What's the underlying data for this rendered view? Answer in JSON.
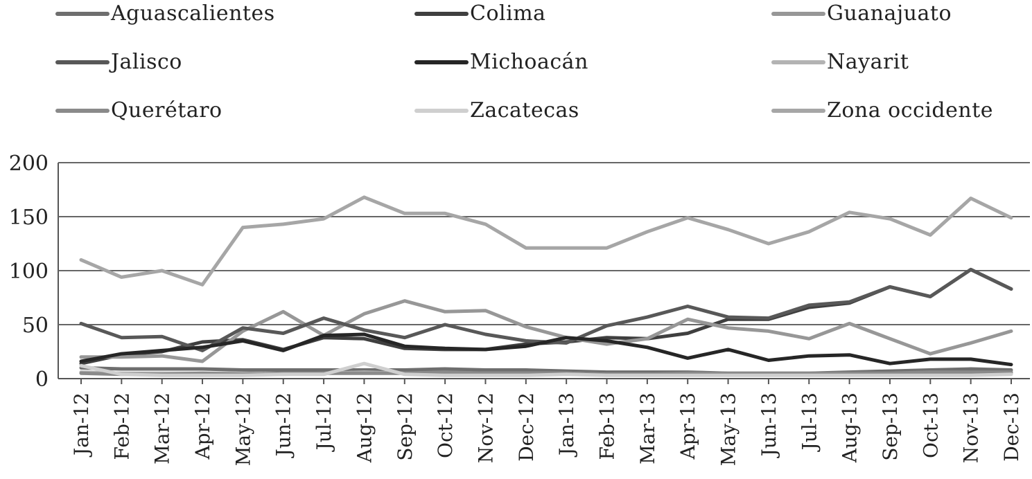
{
  "chart_data": {
    "type": "line",
    "title": "",
    "xlabel": "",
    "ylabel": "",
    "ylim": [
      0,
      200
    ],
    "yticks": [
      "0",
      "50",
      "100",
      "150",
      "200"
    ],
    "grid": "horizontal",
    "legend_position": "top",
    "categories": [
      "Jan-12",
      "Feb-12",
      "Mar-12",
      "Apr-12",
      "May-12",
      "Jun-12",
      "Jul-12",
      "Aug-12",
      "Sep-12",
      "Oct-12",
      "Nov-12",
      "Dec-12",
      "Jan-13",
      "Feb-13",
      "Mar-13",
      "Apr-13",
      "May-13",
      "Jun-13",
      "Jul-13",
      "Aug-13",
      "Sep-13",
      "Oct-13",
      "Nov-13",
      "Dec-13"
    ],
    "series": [
      {
        "name": "Aguascalientes",
        "color": "#6e6e6e",
        "values": [
          10,
          9,
          9,
          9,
          8,
          8,
          8,
          8,
          8,
          9,
          8,
          8,
          7,
          6,
          6,
          6,
          5,
          5,
          5,
          6,
          7,
          8,
          9,
          8
        ]
      },
      {
        "name": "Colima",
        "color": "#3f3f3f",
        "values": [
          14,
          22,
          25,
          34,
          36,
          27,
          38,
          37,
          28,
          27,
          27,
          32,
          34,
          38,
          37,
          42,
          55,
          55,
          66,
          70,
          85,
          76,
          101,
          83
        ]
      },
      {
        "name": "Guanajuato",
        "color": "#979797",
        "values": [
          20,
          20,
          21,
          16,
          44,
          62,
          40,
          60,
          72,
          62,
          63,
          48,
          38,
          32,
          37,
          55,
          47,
          44,
          37,
          51,
          37,
          23,
          33,
          44
        ]
      },
      {
        "name": "Jalisco",
        "color": "#585858",
        "values": [
          51,
          38,
          39,
          26,
          47,
          42,
          56,
          45,
          38,
          50,
          41,
          35,
          33,
          49,
          57,
          67,
          57,
          56,
          68,
          71,
          85,
          76,
          101,
          83
        ]
      },
      {
        "name": "Michoacán",
        "color": "#262626",
        "values": [
          16,
          23,
          26,
          29,
          35,
          26,
          40,
          41,
          30,
          28,
          27,
          30,
          38,
          35,
          29,
          19,
          27,
          17,
          21,
          22,
          14,
          18,
          18,
          13
        ]
      },
      {
        "name": "Nayarit",
        "color": "#b3b3b3",
        "values": [
          6,
          5,
          5,
          5,
          5,
          4,
          5,
          6,
          5,
          5,
          5,
          5,
          5,
          4,
          4,
          4,
          4,
          4,
          4,
          4,
          4,
          5,
          5,
          5
        ]
      },
      {
        "name": "Querétaro",
        "color": "#8a8a8a",
        "values": [
          5,
          4,
          4,
          5,
          4,
          5,
          5,
          5,
          5,
          6,
          5,
          5,
          5,
          4,
          4,
          5,
          5,
          5,
          5,
          5,
          5,
          6,
          6,
          6
        ]
      },
      {
        "name": "Zacatecas",
        "color": "#cfcfcf",
        "values": [
          12,
          4,
          3,
          3,
          3,
          4,
          4,
          14,
          4,
          3,
          3,
          3,
          4,
          3,
          3,
          3,
          3,
          3,
          3,
          3,
          3,
          3,
          3,
          4
        ]
      },
      {
        "name": "Zona occidente",
        "color": "#a6a6a6",
        "values": [
          110,
          94,
          100,
          87,
          140,
          143,
          148,
          168,
          153,
          153,
          143,
          121,
          121,
          121,
          136,
          149,
          138,
          125,
          136,
          154,
          148,
          133,
          167,
          149
        ]
      }
    ]
  }
}
